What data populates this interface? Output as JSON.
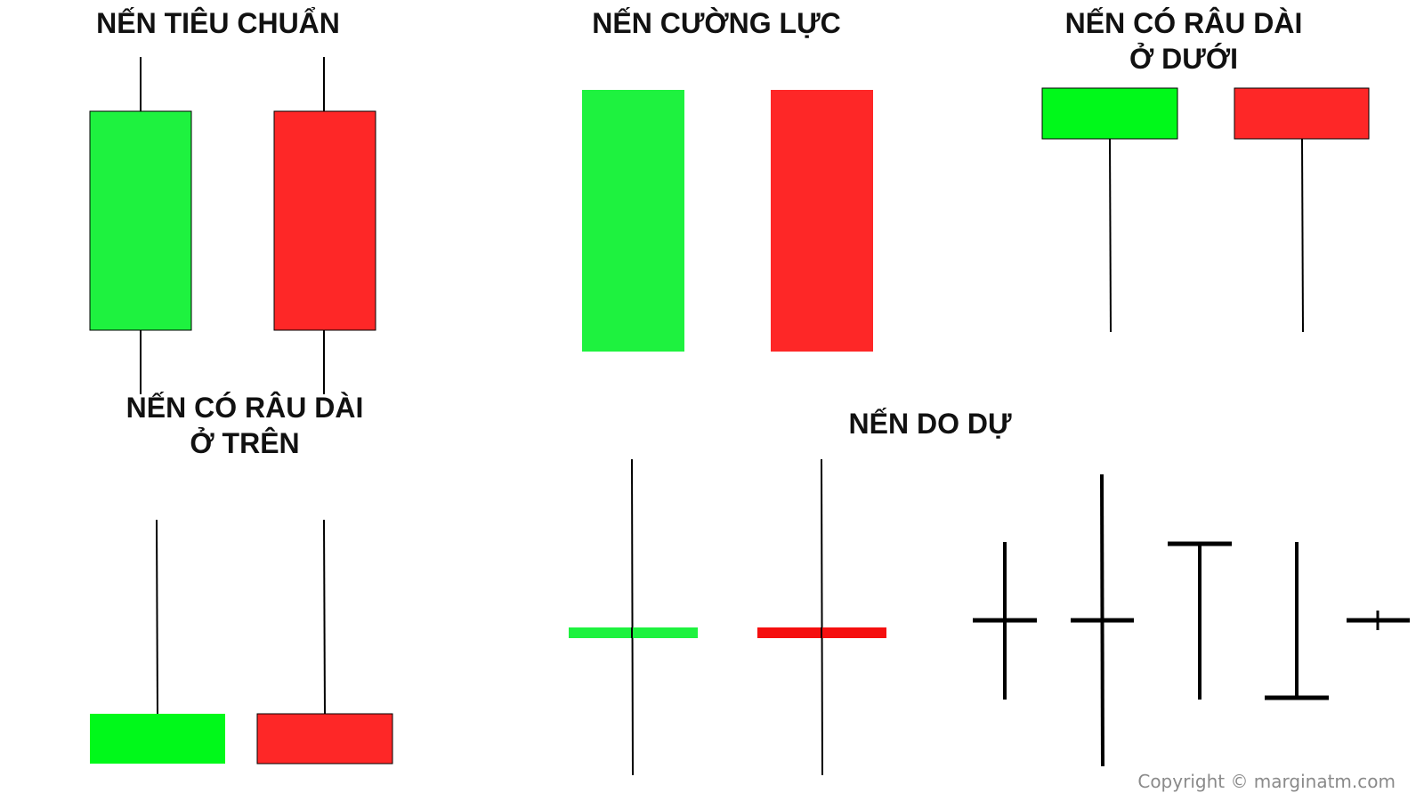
{
  "sections": {
    "standard": {
      "title": "NẾN TIÊU CHUẨN"
    },
    "strong": {
      "title": "NẾN CƯỜNG LỰC"
    },
    "lower_wick": {
      "title_line1": "NẾN CÓ RÂU DÀI",
      "title_line2": "Ở DƯỚI"
    },
    "upper_wick": {
      "title_line1": "NẾN CÓ RÂU DÀI",
      "title_line2": "Ở TRÊN"
    },
    "indecision": {
      "title": "NẾN DO DỰ"
    }
  },
  "colors": {
    "bullish": "#1ef23f",
    "bullish_bright": "#00f91a",
    "bearish": "#fe2727",
    "bearish_doji": "#f50f0f",
    "wick": "#000000"
  },
  "footer": {
    "copyright": "Copyright © marginatm.com"
  }
}
